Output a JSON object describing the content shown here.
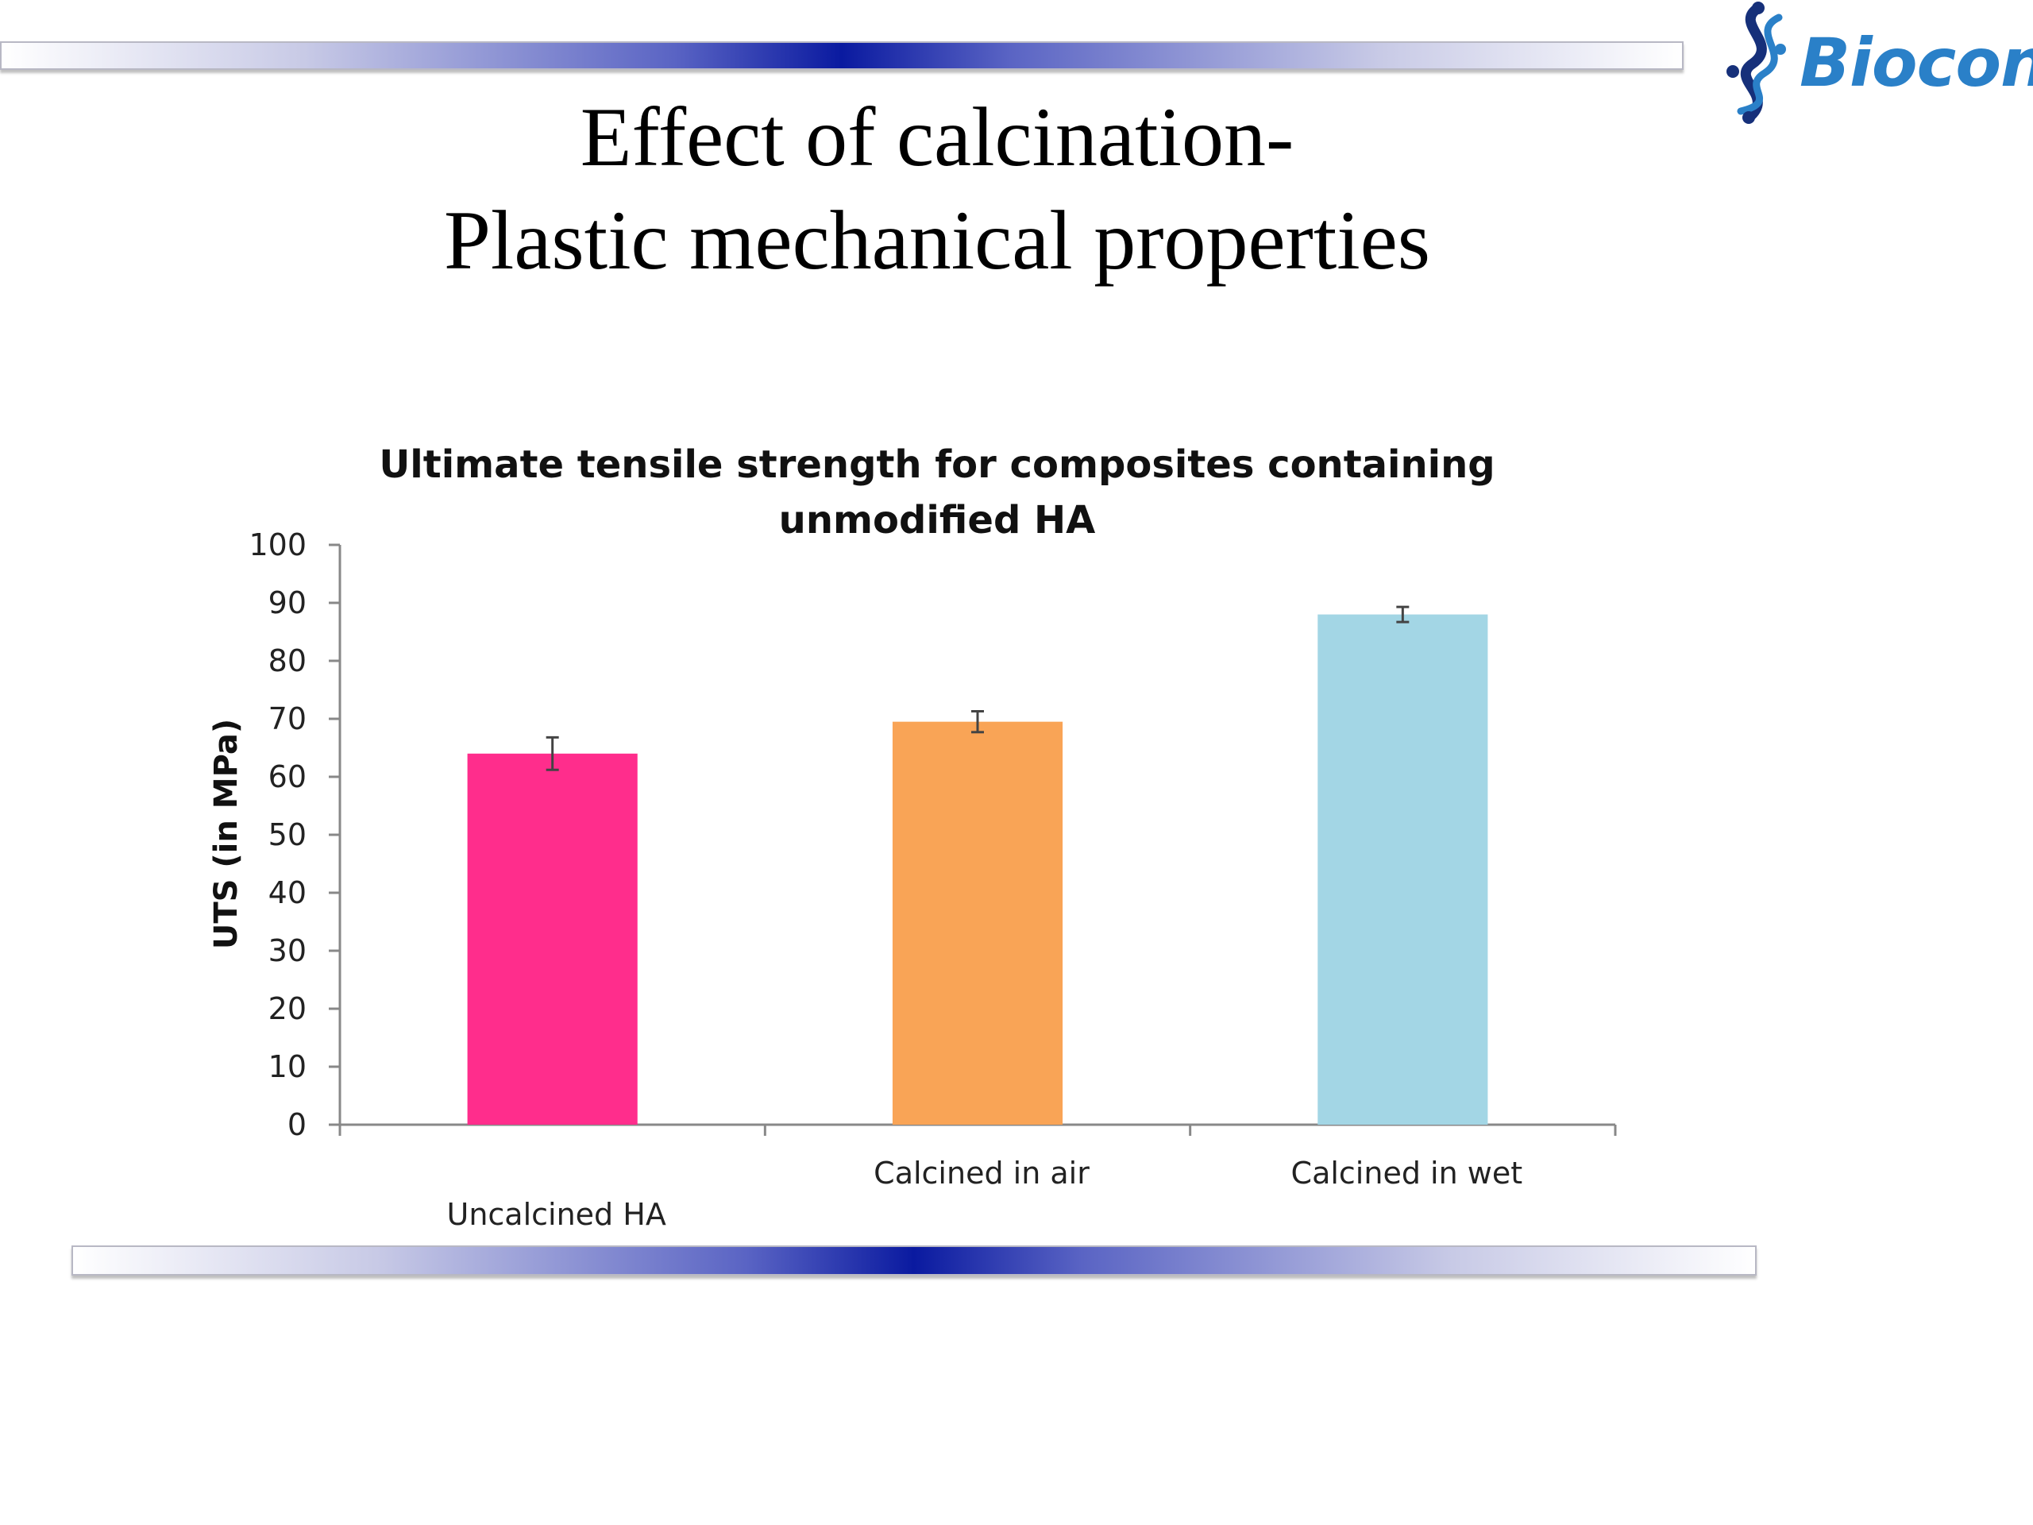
{
  "slide": {
    "title_line1": "Effect of calcination-",
    "title_line2": "Plastic mechanical properties",
    "logo_text": "Biocon",
    "logo_color": "#2a80c8",
    "logo_icon": "biocon-helix-icon"
  },
  "chart_data": {
    "type": "bar",
    "title_line1": "Ultimate tensile strength for composites containing",
    "title_line2": "unmodified HA",
    "xlabel": "",
    "ylabel": "UTS (in MPa)",
    "ylim": [
      0,
      100
    ],
    "yticks": [
      0,
      10,
      20,
      30,
      40,
      50,
      60,
      70,
      80,
      90,
      100
    ],
    "grid": false,
    "categories": [
      "Uncalcined HA",
      "Calcined in air",
      "Calcined in wet"
    ],
    "values": [
      64,
      69.5,
      88
    ],
    "errors": [
      2.8,
      1.8,
      1.3
    ],
    "colors": [
      "#ff2d8c",
      "#f9a456",
      "#a3d6e5"
    ]
  }
}
